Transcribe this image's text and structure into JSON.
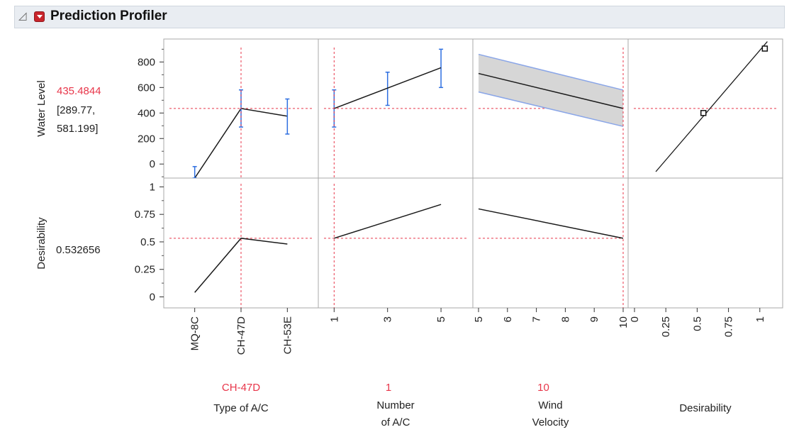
{
  "header": {
    "title": "Prediction Profiler"
  },
  "chart_data": {
    "type": "line",
    "responses": [
      {
        "name": "Water Level",
        "value": "435.4844",
        "ci_low": "[289.77,",
        "ci_high": "581.199]",
        "yticks": [
          "800",
          "600",
          "400",
          "200",
          "0"
        ],
        "ylim": [
          -110,
          980
        ]
      },
      {
        "name": "Desirability",
        "value": "0.532656",
        "yticks": [
          "1",
          "0.75",
          "0.5",
          "0.25",
          "0"
        ],
        "ylim": [
          -0.1,
          1.08
        ]
      }
    ],
    "factors": [
      {
        "name": "Type of A/C",
        "label_lines": [
          "Type of A/C"
        ],
        "current": "CH-47D",
        "categories": [
          "MQ-8C",
          "CH-47D",
          "CH-53E"
        ],
        "water_level": {
          "predicted": [
            -110,
            435.48,
            375
          ],
          "ci_low": [
            -110,
            290,
            235
          ],
          "ci_high": [
            -20,
            581,
            510
          ]
        },
        "desirability": [
          0.04,
          0.533,
          0.48
        ]
      },
      {
        "name": "Number of A/C",
        "label_lines": [
          "Number",
          "of A/C"
        ],
        "current": "1",
        "ticks": [
          "1",
          "3",
          "5"
        ],
        "xlim": [
          0.7,
          5.9
        ],
        "water_level": {
          "x": [
            1,
            3,
            5
          ],
          "predicted": [
            435.48,
            595,
            755
          ],
          "ci_low": [
            290,
            460,
            600
          ],
          "ci_high": [
            581,
            720,
            900
          ]
        },
        "desirability": {
          "x": [
            1,
            5
          ],
          "y": [
            0.533,
            0.84
          ]
        }
      },
      {
        "name": "Wind Velocity",
        "label_lines": [
          "Wind",
          "Velocity"
        ],
        "current": "10",
        "ticks": [
          "5",
          "6",
          "7",
          "8",
          "9",
          "10"
        ],
        "xlim": [
          5,
          10
        ],
        "water_level": {
          "x": [
            5,
            10
          ],
          "predicted": [
            710,
            435.48
          ],
          "ci_low": [
            565,
            295
          ],
          "ci_high": [
            860,
            580
          ]
        },
        "desirability": {
          "x": [
            5,
            10
          ],
          "y": [
            0.8,
            0.533
          ]
        }
      }
    ],
    "desirability_function": {
      "label": "Desirability",
      "ticks": [
        "0",
        "0.25",
        "0.5",
        "0.75",
        "1"
      ],
      "xlim": [
        0,
        1.12
      ],
      "curve": {
        "x": [
          0.17,
          1.06
        ],
        "y": [
          -60,
          960
        ]
      },
      "handles": [
        {
          "x": 0.55,
          "y": 400
        },
        {
          "x": 1.04,
          "y": 905
        }
      ]
    },
    "colors": {
      "ref": "#e8364a",
      "ci": "#2e6fe0",
      "band": "#d6d6d6",
      "band_edge": "#8aa6e8",
      "line": "#1a1a1a",
      "grid": "#a8a8a8",
      "current": "#e8364a"
    }
  }
}
